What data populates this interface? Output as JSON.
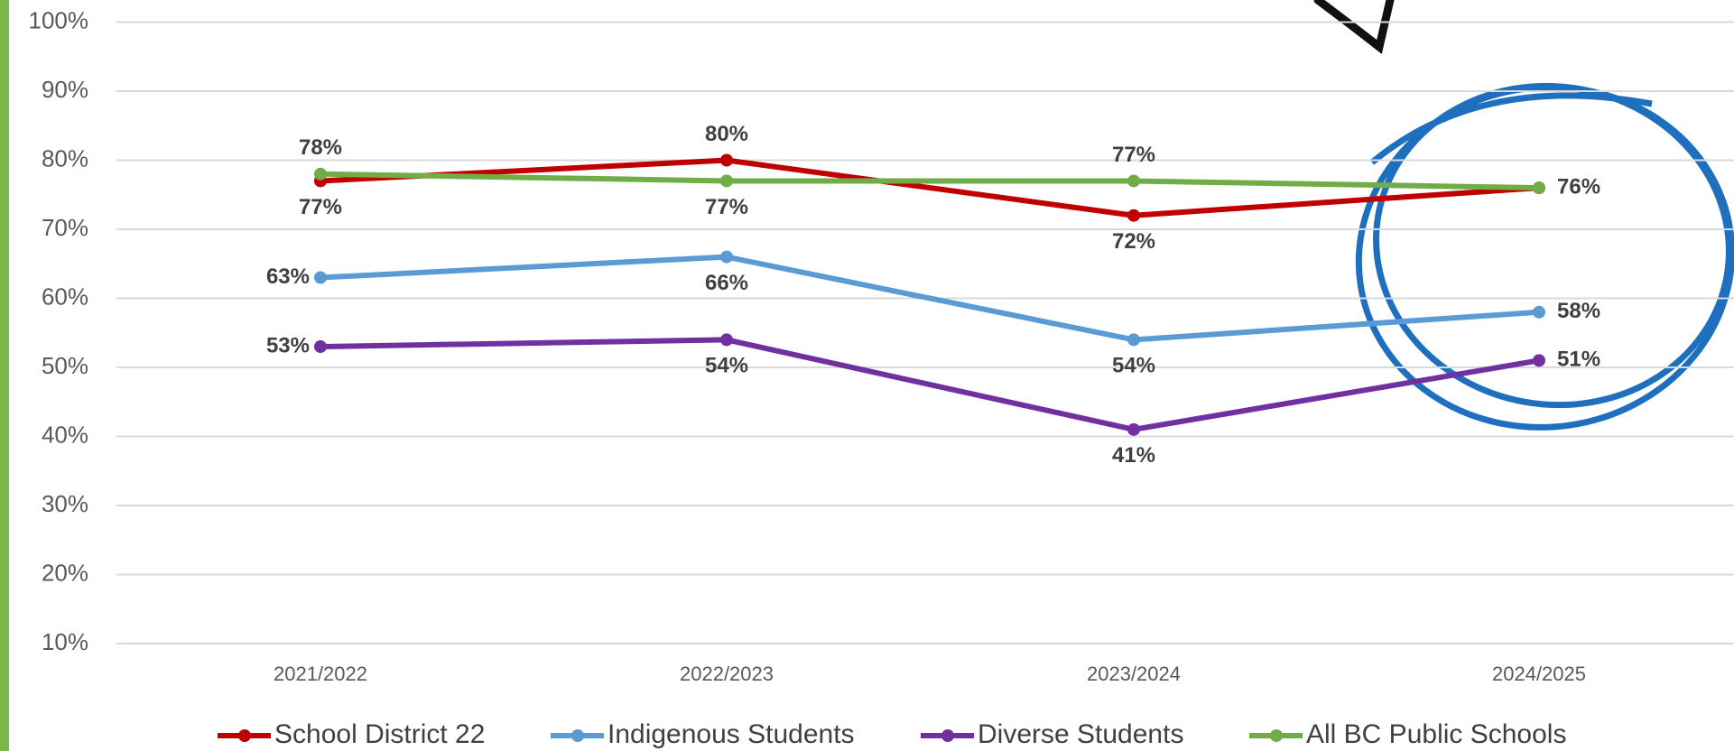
{
  "chart_data": {
    "type": "line",
    "categories": [
      "2021/2022",
      "2022/2023",
      "2023/2024",
      "2024/2025"
    ],
    "series": [
      {
        "name": "School District 22",
        "color": "#c00000",
        "values": [
          77,
          80,
          72,
          76
        ],
        "value_labels": [
          "77%",
          "80%",
          "72%",
          null
        ]
      },
      {
        "name": "Indigenous Students",
        "color": "#5b9bd5",
        "values": [
          63,
          66,
          54,
          58
        ],
        "value_labels": [
          "63%",
          "66%",
          "54%",
          "58%"
        ]
      },
      {
        "name": "Diverse Students",
        "color": "#7030a0",
        "values": [
          53,
          54,
          41,
          51
        ],
        "value_labels": [
          "53%",
          "54%",
          "41%",
          "51%"
        ]
      },
      {
        "name": "All BC Public Schools",
        "color": "#70ad47",
        "values": [
          78,
          77,
          77,
          76
        ],
        "value_labels": [
          "78%",
          "77%",
          "77%",
          "76%"
        ]
      }
    ],
    "ylim": [
      10,
      100
    ],
    "yticks": [
      {
        "value": 10,
        "label": "10%"
      },
      {
        "value": 20,
        "label": "20%"
      },
      {
        "value": 30,
        "label": "30%"
      },
      {
        "value": 40,
        "label": "40%"
      },
      {
        "value": 50,
        "label": "50%"
      },
      {
        "value": 60,
        "label": "60%"
      },
      {
        "value": 70,
        "label": "70%"
      },
      {
        "value": 80,
        "label": "80%"
      },
      {
        "value": 90,
        "label": "90%"
      },
      {
        "value": 100,
        "label": "100%"
      }
    ],
    "grid": true,
    "legend": "bottom"
  }
}
